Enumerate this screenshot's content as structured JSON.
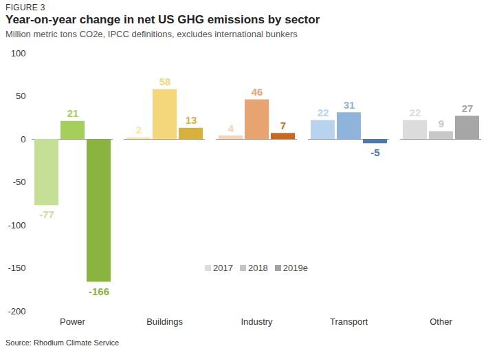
{
  "chart_data": {
    "type": "bar",
    "figure_label": "FIGURE 3",
    "title": "Year-on-year change in net US GHG emissions by sector",
    "subtitle": "Million metric tons CO2e, IPCC definitions, excludes international bunkers",
    "caption": "Source: Rhodium Climate Service",
    "categories": [
      "Power",
      "Buildings",
      "Industry",
      "Transport",
      "Other"
    ],
    "series": [
      {
        "name": "2017",
        "color": "#dcdcdc",
        "colors": [
          "#c5df96",
          "#f8e7a6",
          "#f6d3b6",
          "#b7d3ee",
          "#dcdcdc"
        ],
        "values": [
          -77,
          2,
          4,
          22,
          22
        ]
      },
      {
        "name": "2018",
        "color": "#c4c4c4",
        "colors": [
          "#a4cf5a",
          "#f3d77a",
          "#e8a470",
          "#8fb4dc",
          "#c8c8c8"
        ],
        "values": [
          21,
          58,
          46,
          31,
          9
        ]
      },
      {
        "name": "2019e",
        "color": "#a3a3a3",
        "colors": [
          "#8ab33f",
          "#d6b13b",
          "#c8691f",
          "#4e79a8",
          "#a6a6a6"
        ],
        "values": [
          -166,
          13,
          7,
          -5,
          27
        ]
      }
    ],
    "ylim": [
      -200,
      100
    ],
    "yticks": [
      -200,
      -150,
      -100,
      -50,
      0,
      50,
      100
    ],
    "grid": false,
    "legend": "bottom",
    "data_labels": true
  }
}
